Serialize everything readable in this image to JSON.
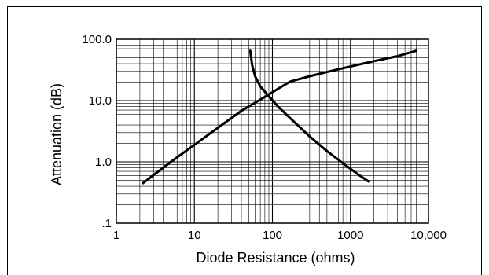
{
  "chart_data": {
    "type": "line",
    "xlabel": "Diode Resistance (ohms)",
    "ylabel": "Attenuation (dB)",
    "x_scale": "log",
    "y_scale": "log",
    "xlim": [
      1,
      10000
    ],
    "ylim": [
      0.1,
      100
    ],
    "x_ticks": [
      "1",
      "10",
      "100",
      "1000",
      "10,000"
    ],
    "y_ticks": [
      "100.0",
      "10.0",
      "1.0",
      ".1"
    ],
    "grid": true,
    "series": [
      {
        "x": [
          2.2,
          5,
          10,
          20,
          40,
          80,
          120,
          170,
          300,
          600,
          1000,
          2000,
          4000,
          7000
        ],
        "y": [
          0.45,
          1.0,
          1.9,
          3.6,
          6.8,
          11.5,
          15.8,
          20.5,
          25,
          31,
          36,
          44,
          53,
          65
        ],
        "color": "#000000"
      },
      {
        "x": [
          52,
          55,
          60,
          70,
          90,
          120,
          180,
          300,
          500,
          800,
          1200,
          1700
        ],
        "y": [
          65,
          38,
          25,
          17,
          11.8,
          7.8,
          4.8,
          2.6,
          1.5,
          0.95,
          0.65,
          0.48
        ],
        "color": "#000000"
      }
    ]
  }
}
